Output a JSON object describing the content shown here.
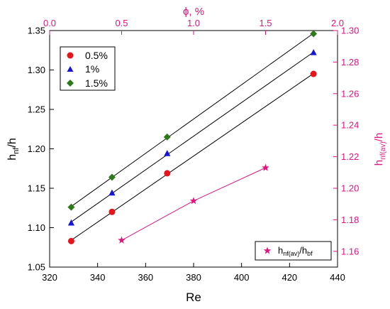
{
  "chart_data": {
    "type": "scatter",
    "title": "",
    "xlabel": "Re",
    "ylabel_main": "h",
    "ylabel_sub": "nf",
    "ylabel_tail": "/h",
    "x_top_label": "ϕ, %",
    "y_right_main": "h",
    "y_right_sub": "nf(av)",
    "y_right_tail": "/h",
    "xlim": [
      320,
      440
    ],
    "ylim": [
      1.05,
      1.35
    ],
    "x_top_lim": [
      0.0,
      2.0
    ],
    "y_right_lim": [
      1.15,
      1.3
    ],
    "x_ticks": [
      "320",
      "340",
      "360",
      "380",
      "400",
      "420",
      "440"
    ],
    "y_ticks": [
      "1.05",
      "1.10",
      "1.15",
      "1.20",
      "1.25",
      "1.30",
      "1.35"
    ],
    "x_top_ticks": [
      "0.0",
      "0.5",
      "1.0",
      "1.5",
      "2.0"
    ],
    "y_right_ticks": [
      "1.16",
      "1.18",
      "1.20",
      "1.22",
      "1.24",
      "1.26",
      "1.28",
      "1.30"
    ],
    "grid": false,
    "legend_position": "top-left",
    "series": [
      {
        "name": "0.5%",
        "marker": "circle",
        "color": "#e8141b",
        "x": [
          329,
          346,
          369,
          430
        ],
        "y": [
          1.083,
          1.12,
          1.169,
          1.295
        ]
      },
      {
        "name": "1%",
        "marker": "triangle",
        "color": "#1515d6",
        "x": [
          329,
          346,
          369,
          430
        ],
        "y": [
          1.106,
          1.144,
          1.194,
          1.322
        ]
      },
      {
        "name": "1.5%",
        "marker": "diamond",
        "color": "#2d7a1b",
        "x": [
          329,
          346,
          369,
          430
        ],
        "y": [
          1.126,
          1.164,
          1.215,
          1.346
        ]
      }
    ],
    "secondary_series": {
      "legend_main": "h",
      "legend_sub1": "nf(av)",
      "legend_mid": "/h",
      "legend_sub2": "bf",
      "marker": "star",
      "color": "#e0157e",
      "x": [
        0.5,
        1.0,
        1.5
      ],
      "y": [
        1.167,
        1.192,
        1.213
      ]
    },
    "colors": {
      "secondary_axis": "#e0157e",
      "fit_line": "#000000"
    }
  }
}
